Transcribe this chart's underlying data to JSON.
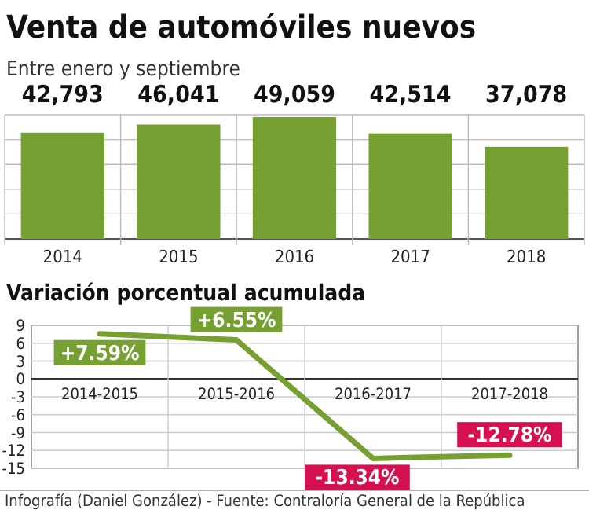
{
  "chart_data": [
    {
      "type": "bar",
      "title": "Venta de automóviles nuevos",
      "subtitle": "Entre enero y septiembre",
      "categories": [
        "2014",
        "2015",
        "2016",
        "2017",
        "2018"
      ],
      "values": [
        42793,
        46041,
        49059,
        42514,
        37078
      ],
      "color": "#76a032",
      "data_labels": false,
      "value_labels": [
        "42,793",
        "46,041",
        "49,059",
        "42,514",
        "37,078"
      ],
      "ylim": [
        0,
        50000
      ],
      "yticks": [
        {
          "value": 0,
          "label": null
        },
        {
          "value": 10000,
          "label": null
        },
        {
          "value": 20000,
          "label": null
        },
        {
          "value": 30000,
          "label": null
        },
        {
          "value": 40000,
          "label": null
        },
        {
          "value": 50000,
          "label": null
        }
      ],
      "grid": true,
      "tick_labels": "x"
    },
    {
      "type": "line",
      "title": "Variación porcentual acumulada",
      "categories": [
        "2014-2015",
        "2015-2016",
        "2016-2017",
        "2017-2018"
      ],
      "values": [
        7.59,
        6.55,
        -13.34,
        -12.78
      ],
      "color": "#76a032",
      "colors": [
        "#76a032",
        "#76a032",
        "#d6114f",
        "#d6114f"
      ],
      "value_labels": [
        "+7.59%",
        "+6.55%",
        "-13.34%",
        "-12.78%"
      ],
      "ylim": [
        -15,
        9
      ],
      "yticks": [
        9,
        6,
        3,
        0,
        -3,
        -6,
        -9,
        -12,
        -15
      ],
      "grid": true,
      "marker": "none",
      "annotations": [
        "Infografía (Daniel González) - Fuente: Contraloría General de la República"
      ]
    }
  ]
}
